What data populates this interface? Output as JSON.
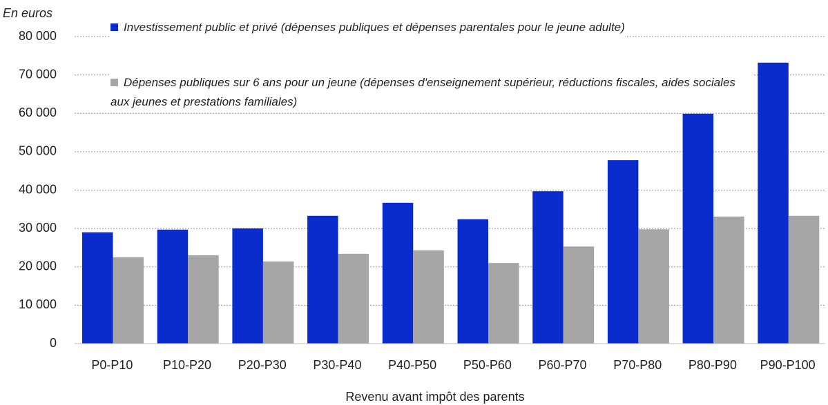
{
  "chart_data": {
    "type": "bar",
    "y_label": "En euros",
    "x_label": "Revenu avant impôt des parents",
    "categories": [
      "P0-P10",
      "P10-P20",
      "P20-P30",
      "P30-P40",
      "P40-P50",
      "P50-P60",
      "P60-P70",
      "P70-P80",
      "P80-P90",
      "P90-P100"
    ],
    "series": [
      {
        "name": "Investissement  public et privé (dépenses publiques et dépenses parentales pour le jeune adulte)",
        "color": "#0a2ccc",
        "values": [
          29000,
          29700,
          30000,
          33300,
          36700,
          32400,
          39700,
          47800,
          59900,
          73200
        ]
      },
      {
        "name": "Dépenses publiques sur 6 ans pour un jeune (dépenses d'enseignement  supérieur, réductions fiscales, aides sociales aux jeunes et prestations familiales)",
        "color": "#a6a6a6",
        "values": [
          22500,
          23000,
          21400,
          23400,
          24300,
          21000,
          25300,
          29800,
          33100,
          33300
        ]
      }
    ],
    "ylim": [
      0,
      80000
    ],
    "yticks": [
      0,
      {
        "value": 10000,
        "label": "10 000"
      },
      {
        "value": 20000,
        "label": "20 000"
      },
      {
        "value": 30000,
        "label": "30 000"
      },
      {
        "value": 40000,
        "label": "40 000"
      },
      {
        "value": 50000,
        "label": "50 000"
      },
      {
        "value": 60000,
        "label": "60 000"
      },
      {
        "value": 70000,
        "label": "70 000"
      },
      {
        "value": 80000,
        "label": "80 000"
      }
    ],
    "grid": true
  }
}
